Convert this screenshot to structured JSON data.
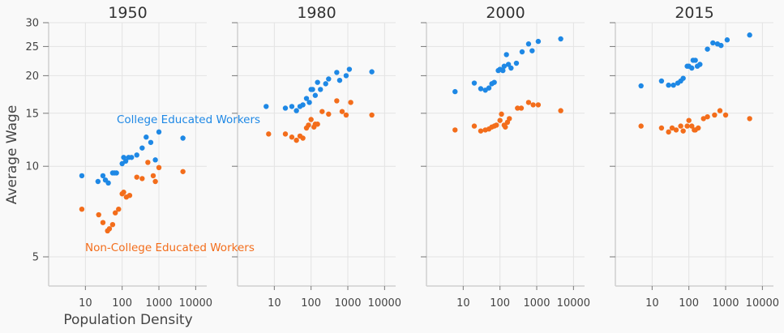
{
  "chart_data": {
    "type": "scatter",
    "ylabel": "Average Wage",
    "xlabel": "Population Density",
    "x_scale": "log",
    "y_scale": "log",
    "xlim": [
      1,
      20000
    ],
    "ylim": [
      4,
      30
    ],
    "x_ticks": [
      10,
      100,
      1000,
      10000
    ],
    "x_tick_labels": [
      "10",
      "100",
      "1000",
      "10000"
    ],
    "y_ticks": [
      5,
      10,
      15,
      20,
      25,
      30
    ],
    "y_tick_labels": [
      "5",
      "10",
      "15",
      "20",
      "25",
      "30"
    ],
    "grid": true,
    "colors": {
      "college": "#1e88e5",
      "noncollege": "#f36d1b",
      "grid": "#e3e3e3",
      "axis": "#cfcfcf",
      "background": "#f9f9f9"
    },
    "annotations": [
      {
        "text": "College Educated Workers",
        "series": "college"
      },
      {
        "text": "Non-College Educated Workers",
        "series": "noncollege"
      }
    ],
    "panels": [
      {
        "title": "1950",
        "series": [
          {
            "name": "College Educated Workers",
            "points": [
              [
                8,
                9.3
              ],
              [
                22,
                8.9
              ],
              [
                30,
                9.3
              ],
              [
                35,
                9
              ],
              [
                42,
                8.8
              ],
              [
                55,
                9.5
              ],
              [
                62,
                9.5
              ],
              [
                70,
                9.5
              ],
              [
                100,
                10.2
              ],
              [
                110,
                10.7
              ],
              [
                125,
                10.4
              ],
              [
                150,
                10.7
              ],
              [
                180,
                10.7
              ],
              [
                250,
                10.9
              ],
              [
                350,
                11.5
              ],
              [
                450,
                12.5
              ],
              [
                600,
                12
              ],
              [
                800,
                10.5
              ],
              [
                1000,
                13
              ],
              [
                4500,
                12.4
              ]
            ]
          },
          {
            "name": "Non-College Educated Workers",
            "points": [
              [
                8,
                7.2
              ],
              [
                23,
                6.9
              ],
              [
                30,
                6.5
              ],
              [
                40,
                6.1
              ],
              [
                45,
                6.2
              ],
              [
                55,
                6.4
              ],
              [
                65,
                7
              ],
              [
                80,
                7.2
              ],
              [
                100,
                8.1
              ],
              [
                110,
                8.2
              ],
              [
                130,
                7.9
              ],
              [
                160,
                8
              ],
              [
                250,
                9.2
              ],
              [
                350,
                9.1
              ],
              [
                500,
                10.3
              ],
              [
                700,
                9.3
              ],
              [
                800,
                8.9
              ],
              [
                1000,
                9.9
              ],
              [
                4500,
                9.6
              ]
            ]
          }
        ]
      },
      {
        "title": "1980",
        "series": [
          {
            "name": "College Educated Workers",
            "points": [
              [
                6,
                15.8
              ],
              [
                20,
                15.6
              ],
              [
                30,
                15.8
              ],
              [
                40,
                15.3
              ],
              [
                50,
                15.8
              ],
              [
                60,
                16
              ],
              [
                75,
                16.8
              ],
              [
                90,
                16.3
              ],
              [
                100,
                18
              ],
              [
                110,
                18
              ],
              [
                130,
                17.2
              ],
              [
                150,
                19
              ],
              [
                180,
                18
              ],
              [
                250,
                18.8
              ],
              [
                300,
                19.5
              ],
              [
                500,
                20.5
              ],
              [
                600,
                19.3
              ],
              [
                900,
                20
              ],
              [
                1100,
                21
              ],
              [
                4500,
                20.6
              ]
            ]
          },
          {
            "name": "Non-College Educated Workers",
            "points": [
              [
                7,
                12.8
              ],
              [
                20,
                12.8
              ],
              [
                30,
                12.5
              ],
              [
                40,
                12.2
              ],
              [
                50,
                12.6
              ],
              [
                60,
                12.4
              ],
              [
                75,
                13.4
              ],
              [
                85,
                13.7
              ],
              [
                100,
                14.3
              ],
              [
                120,
                13.5
              ],
              [
                130,
                13.8
              ],
              [
                150,
                13.8
              ],
              [
                200,
                15.2
              ],
              [
                300,
                14.9
              ],
              [
                500,
                16.5
              ],
              [
                700,
                15.2
              ],
              [
                900,
                14.8
              ],
              [
                1200,
                16.3
              ],
              [
                4500,
                14.8
              ]
            ]
          }
        ]
      },
      {
        "title": "2000",
        "series": [
          {
            "name": "College Educated Workers",
            "points": [
              [
                6,
                17.7
              ],
              [
                20,
                18.9
              ],
              [
                30,
                18.1
              ],
              [
                40,
                17.9
              ],
              [
                50,
                18.2
              ],
              [
                60,
                18.8
              ],
              [
                70,
                19
              ],
              [
                90,
                20.8
              ],
              [
                100,
                21
              ],
              [
                120,
                20.8
              ],
              [
                130,
                21.5
              ],
              [
                150,
                23.5
              ],
              [
                170,
                21.8
              ],
              [
                200,
                21.2
              ],
              [
                280,
                22
              ],
              [
                400,
                24
              ],
              [
                600,
                25.5
              ],
              [
                750,
                24.2
              ],
              [
                1100,
                26
              ],
              [
                4500,
                26.5
              ]
            ]
          },
          {
            "name": "Non-College Educated Workers",
            "points": [
              [
                6,
                13.2
              ],
              [
                20,
                13.6
              ],
              [
                30,
                13.1
              ],
              [
                40,
                13.2
              ],
              [
                50,
                13.3
              ],
              [
                60,
                13.5
              ],
              [
                70,
                13.6
              ],
              [
                80,
                13.7
              ],
              [
                100,
                14.2
              ],
              [
                110,
                14.9
              ],
              [
                130,
                13.7
              ],
              [
                140,
                13.5
              ],
              [
                160,
                14
              ],
              [
                180,
                14.4
              ],
              [
                300,
                15.6
              ],
              [
                380,
                15.6
              ],
              [
                600,
                16.3
              ],
              [
                800,
                16
              ],
              [
                1100,
                16
              ],
              [
                4500,
                15.3
              ]
            ]
          }
        ]
      },
      {
        "title": "2015",
        "series": [
          {
            "name": "College Educated Workers",
            "points": [
              [
                5,
                18.5
              ],
              [
                18,
                19.2
              ],
              [
                28,
                18.6
              ],
              [
                38,
                18.6
              ],
              [
                50,
                18.9
              ],
              [
                60,
                19.2
              ],
              [
                70,
                19.6
              ],
              [
                90,
                21.5
              ],
              [
                100,
                21.5
              ],
              [
                120,
                21.2
              ],
              [
                130,
                22.5
              ],
              [
                150,
                22.5
              ],
              [
                170,
                21.5
              ],
              [
                200,
                21.8
              ],
              [
                320,
                24.5
              ],
              [
                450,
                25.7
              ],
              [
                600,
                25.5
              ],
              [
                750,
                25.2
              ],
              [
                1100,
                26.3
              ],
              [
                4500,
                27.3
              ]
            ]
          },
          {
            "name": "Non-College Educated Workers",
            "points": [
              [
                5,
                13.6
              ],
              [
                18,
                13.4
              ],
              [
                28,
                13
              ],
              [
                35,
                13.4
              ],
              [
                45,
                13.2
              ],
              [
                60,
                13.6
              ],
              [
                70,
                13.1
              ],
              [
                90,
                13.6
              ],
              [
                100,
                14.2
              ],
              [
                120,
                13.6
              ],
              [
                140,
                13.2
              ],
              [
                150,
                13.2
              ],
              [
                180,
                13.4
              ],
              [
                250,
                14.4
              ],
              [
                320,
                14.6
              ],
              [
                500,
                14.8
              ],
              [
                700,
                15.3
              ],
              [
                1000,
                14.8
              ],
              [
                4500,
                14.4
              ]
            ]
          }
        ]
      }
    ]
  }
}
